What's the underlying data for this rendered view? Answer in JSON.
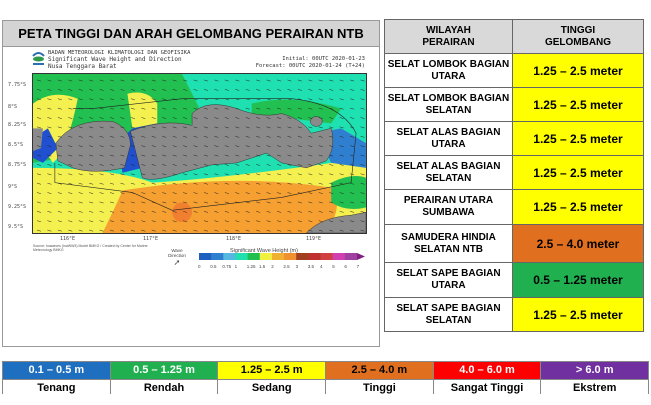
{
  "map_panel": {
    "title": "PETA TINGGI DAN ARAH GELOMBANG PERAIRAN NTB",
    "agency": "BADAN METEOROLOGI KLIMATOLOGI DAN GEOFISIKA",
    "product": "Significant Wave Height and Direction",
    "region": "Nusa Tenggara Barat",
    "initial": "Initial: 00UTC 2020-01-23",
    "forecast": "Forecast: 00UTC 2020-01-24 (T+24)",
    "lat_labels": [
      "7.75°S",
      "8°S",
      "8.25°S",
      "8.5°S",
      "8.75°S",
      "9°S",
      "9.25°S",
      "9.5°S"
    ],
    "lon_labels": [
      "116°E",
      "117°E",
      "118°E",
      "119°E"
    ],
    "source": "Source: Inawaves (InaWW3) Model BMKG / Created by Center for Marine Meteorology BMKG",
    "wave_direction_label": "Wave Direction",
    "colorbar_title": "Significant Wave Height (m)",
    "colorbar_ticks": [
      "0",
      "0.5",
      "0.75",
      "1",
      "1.25",
      "1.5",
      "2",
      "2.5",
      "3",
      "3.5",
      "4",
      "5",
      "6",
      "7"
    ],
    "colorbar_colors": [
      "#1f5fbf",
      "#2f7fd0",
      "#55b8e0",
      "#20e0b0",
      "#20c050",
      "#f0f040",
      "#f0b030",
      "#f09030",
      "#a04020",
      "#c03030",
      "#d04040",
      "#d040b0",
      "#a040a0"
    ]
  },
  "table": {
    "headers": [
      "WILAYAH PERAIRAN",
      "TINGGI GELOMBANG"
    ],
    "rows": [
      {
        "region": "SELAT LOMBOK BAGIAN UTARA",
        "height": "1.25 – 2.5 meter",
        "color": "#ffff00"
      },
      {
        "region": "SELAT LOMBOK BAGIAN SELATAN",
        "height": "1.25 – 2.5 meter",
        "color": "#ffff00"
      },
      {
        "region": "SELAT ALAS BAGIAN UTARA",
        "height": "1.25 – 2.5 meter",
        "color": "#ffff00"
      },
      {
        "region": "SELAT ALAS BAGIAN SELATAN",
        "height": "1.25 – 2.5 meter",
        "color": "#ffff00"
      },
      {
        "region": "PERAIRAN UTARA SUMBAWA",
        "height": "1.25 – 2.5 meter",
        "color": "#ffff00"
      },
      {
        "region": "SAMUDERA HINDIA SELATAN NTB",
        "height": "2.5 – 4.0 meter",
        "color": "#e07020"
      },
      {
        "region": "SELAT SAPE BAGIAN UTARA",
        "height": "0.5 – 1.25 meter",
        "color": "#20b050"
      },
      {
        "region": "SELAT SAPE BAGIAN SELATAN",
        "height": "1.25 – 2.5 meter",
        "color": "#ffff00"
      }
    ]
  },
  "legend": [
    {
      "range": "0.1 – 0.5 m",
      "label": "Tenang",
      "color": "#1f6fc0",
      "text_color": "#ffffff"
    },
    {
      "range": "0.5 – 1.25 m",
      "label": "Rendah",
      "color": "#20b050",
      "text_color": "#ffffff"
    },
    {
      "range": "1.25 – 2.5 m",
      "label": "Sedang",
      "color": "#ffff00",
      "text_color": "#000000"
    },
    {
      "range": "2.5 – 4.0 m",
      "label": "Tinggi",
      "color": "#e07020",
      "text_color": "#000000"
    },
    {
      "range": "4.0 – 6.0 m",
      "label": "Sangat Tinggi",
      "color": "#ff0000",
      "text_color": "#ffffff"
    },
    {
      "range": "> 6.0 m",
      "label": "Ekstrem",
      "color": "#7030a0",
      "text_color": "#ffffff"
    }
  ]
}
